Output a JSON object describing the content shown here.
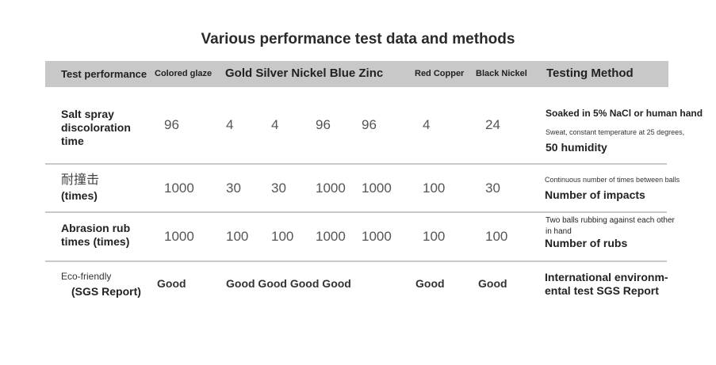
{
  "title": "Various performance test data and methods",
  "header": [
    "Test performance",
    "Colored glaze",
    "Gold Silver Nickel Blue Zinc",
    "Red Copper",
    "Black Nickel",
    "Testing Method"
  ],
  "rows": [
    {
      "label": [
        "Salt spray",
        "discoloration",
        "time"
      ],
      "values": [
        96,
        4,
        4,
        96,
        96,
        4,
        24
      ],
      "method": [
        "Soaked in 5% NaCl or human hand",
        "Sweat, constant temperature at 25 degrees,",
        "50 humidity"
      ]
    },
    {
      "label": [
        "耐撞击",
        "(times)"
      ],
      "values": [
        1000,
        30,
        30,
        1000,
        1000,
        100,
        30
      ],
      "method": [
        "Continuous number of times between balls",
        "Number of impacts"
      ]
    },
    {
      "label": [
        "Abrasion rub",
        "times (times)"
      ],
      "values": [
        1000,
        100,
        100,
        1000,
        1000,
        100,
        100
      ],
      "method": [
        "Two balls rubbing against each other",
        "in hand",
        "Number of rubs"
      ]
    },
    {
      "label": [
        "Eco-friendly",
        "(SGS Report)"
      ],
      "values": [
        "Good",
        "Good Good Good Good",
        "Good",
        "Good"
      ],
      "method": [
        "International environm-",
        "ental test SGS Report"
      ]
    }
  ]
}
